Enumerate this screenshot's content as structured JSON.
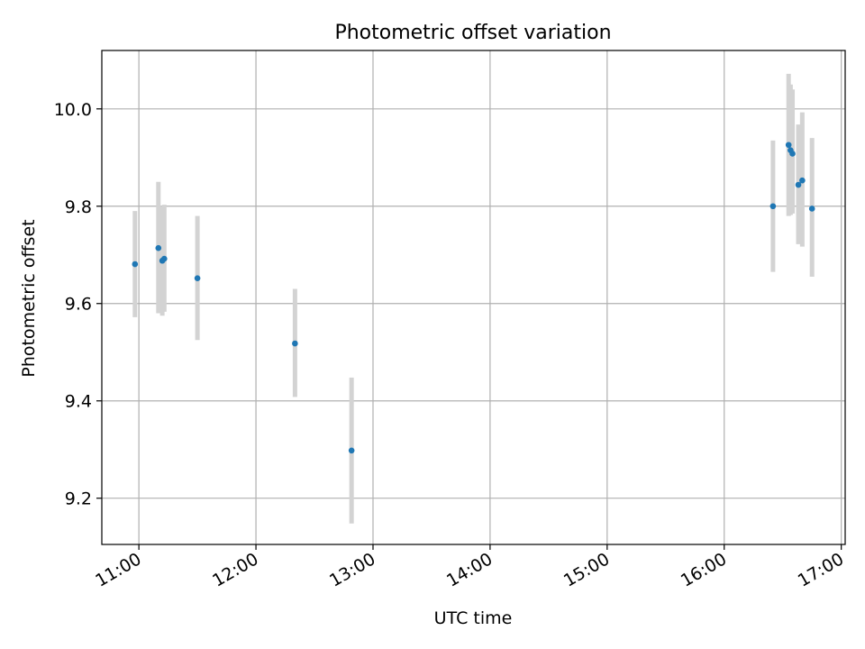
{
  "chart_data": {
    "type": "scatter",
    "title": "Photometric offset variation",
    "xlabel": "UTC time",
    "ylabel": "Photometric offset",
    "x_ticks": [
      "11:00",
      "12:00",
      "13:00",
      "14:00",
      "15:00",
      "16:00",
      "17:00"
    ],
    "y_ticks": [
      "9.2",
      "9.4",
      "9.6",
      "9.8",
      "10.0"
    ],
    "xlim": [
      "10:41",
      "17:02"
    ],
    "ylim": [
      9.105,
      10.12
    ],
    "grid": true,
    "series": [
      {
        "points": [
          {
            "x": "10:58",
            "y": 9.681,
            "err_low": 9.572,
            "err_high": 9.79
          },
          {
            "x": "11:10",
            "y": 9.714,
            "err_low": 9.58,
            "err_high": 9.85
          },
          {
            "x": "11:12",
            "y": 9.688,
            "err_low": 9.575,
            "err_high": 9.8
          },
          {
            "x": "11:13",
            "y": 9.692,
            "err_low": 9.583,
            "err_high": 9.803
          },
          {
            "x": "11:30",
            "y": 9.652,
            "err_low": 9.525,
            "err_high": 9.78
          },
          {
            "x": "12:20",
            "y": 9.518,
            "err_low": 9.408,
            "err_high": 9.63
          },
          {
            "x": "12:49",
            "y": 9.298,
            "err_low": 9.148,
            "err_high": 9.448
          },
          {
            "x": "16:25",
            "y": 9.8,
            "err_low": 9.665,
            "err_high": 9.935
          },
          {
            "x": "16:33",
            "y": 9.926,
            "err_low": 9.78,
            "err_high": 10.072
          },
          {
            "x": "16:34",
            "y": 9.915,
            "err_low": 9.782,
            "err_high": 10.05
          },
          {
            "x": "16:35",
            "y": 9.908,
            "err_low": 9.785,
            "err_high": 10.04
          },
          {
            "x": "16:38",
            "y": 9.844,
            "err_low": 9.722,
            "err_high": 9.968
          },
          {
            "x": "16:40",
            "y": 9.853,
            "err_low": 9.717,
            "err_high": 9.993
          },
          {
            "x": "16:45",
            "y": 9.795,
            "err_low": 9.655,
            "err_high": 9.94
          }
        ]
      }
    ],
    "colors": {
      "points": "#1f77b4",
      "errorbars": "#d3d3d3",
      "grid": "#b0b0b0"
    }
  }
}
